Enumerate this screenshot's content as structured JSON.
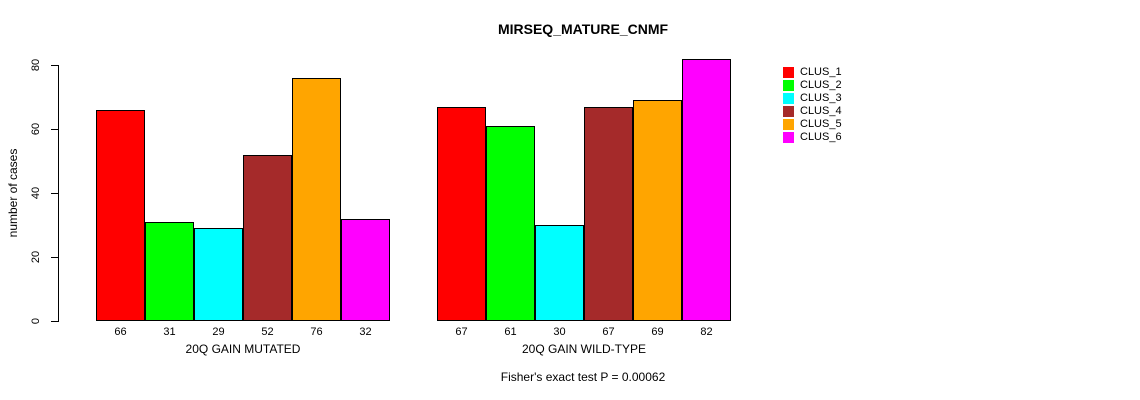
{
  "chart_data": {
    "type": "bar",
    "title": "MIRSEQ_MATURE_CNMF",
    "ylabel": "number of cases",
    "xlabel": "",
    "ylim": [
      0,
      80
    ],
    "yticks": [
      0,
      20,
      40,
      60,
      80
    ],
    "grid": false,
    "legend_position": "topright",
    "categories": [
      "20Q GAIN MUTATED",
      "20Q GAIN WILD-TYPE"
    ],
    "series": [
      {
        "name": "CLUS_1",
        "color": "#FF0000",
        "values": [
          66,
          67
        ]
      },
      {
        "name": "CLUS_2",
        "color": "#00FF00",
        "values": [
          31,
          61
        ]
      },
      {
        "name": "CLUS_3",
        "color": "#00FFFF",
        "values": [
          29,
          30
        ]
      },
      {
        "name": "CLUS_4",
        "color": "#A52A2A",
        "values": [
          52,
          67
        ]
      },
      {
        "name": "CLUS_5",
        "color": "#FFA500",
        "values": [
          76,
          69
        ]
      },
      {
        "name": "CLUS_6",
        "color": "#FF00FF",
        "values": [
          32,
          82
        ]
      }
    ],
    "annotation": "Fisher's exact test P = 0.00062"
  }
}
